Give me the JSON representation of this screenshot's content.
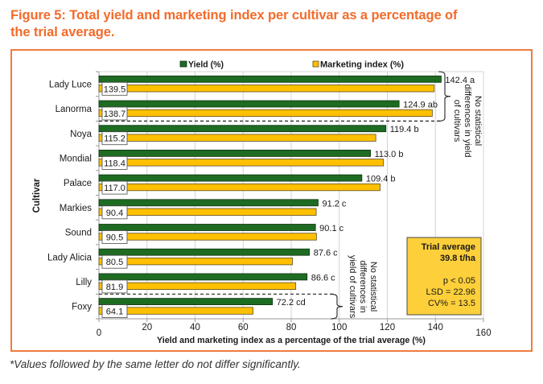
{
  "header": {
    "title_lines": [
      "Figure 5: Total yield and marketing index per cultivar as a percentage of",
      "the trial average."
    ]
  },
  "colors": {
    "title": "#f26b2b",
    "frame_border": "#f07b3f",
    "yield_bar": "#1e6b22",
    "marketing_bar": "#ffc000",
    "stats_box_fill": "#fdcf3a"
  },
  "stats_box": {
    "heading": "Trial average",
    "average": "39.8 t/ha",
    "p_value": "p < 0.05",
    "lsd": "LSD = 22.96",
    "cv": "CV% = 13.5"
  },
  "footnote": "*Values followed by the same letter do not differ significantly.",
  "chart_data": {
    "type": "bar",
    "orientation": "horizontal",
    "title": "Figure 5: Total yield and marketing index per cultivar as a percentage of the trial average.",
    "xlabel": "Yield and marketing index as a percentage of the trial average (%)",
    "ylabel": "Cultivar",
    "xlim": [
      0,
      160
    ],
    "xticks": [
      "0",
      "20",
      "40",
      "60",
      "80",
      "100",
      "120",
      "140",
      "160"
    ],
    "grid": true,
    "legend_position": "top",
    "categories": [
      "Lady Luce",
      "Lanorma",
      "Noya",
      "Mondial",
      "Palace",
      "Markies",
      "Sound",
      "Lady Alicia",
      "Lilly",
      "Foxy"
    ],
    "series": [
      {
        "name": "Yield (%)",
        "color": "#1e6b22",
        "values": [
          142.4,
          124.9,
          119.4,
          113.0,
          109.4,
          91.2,
          90.1,
          87.6,
          86.6,
          72.2
        ],
        "labels": [
          "142.4 a",
          "124.9 ab",
          "119.4 b",
          "113.0 b",
          "109.4 b",
          "91.2 c",
          "90.1 c",
          "87.6 c",
          "86.6 c",
          "72.2 cd"
        ]
      },
      {
        "name": "Marketing index (%)",
        "color": "#ffc000",
        "values": [
          139.5,
          138.7,
          115.2,
          118.4,
          117.0,
          90.4,
          90.5,
          80.5,
          81.9,
          64.1
        ],
        "labels": [
          "139.5",
          "138.7",
          "115.2",
          "118.4",
          "117.0",
          "90.4",
          "90.5",
          "80.5",
          "81.9",
          "64.1"
        ]
      }
    ],
    "annotations": [
      {
        "type": "bracket",
        "categories": [
          "Lady Luce",
          "Lanorma"
        ],
        "text_lines": [
          "No statistical",
          "differences in yield",
          "of cultivars"
        ]
      },
      {
        "type": "bracket",
        "categories": [
          "Foxy"
        ],
        "text_lines": [
          "No statistical",
          "differences in",
          "yield of cultivars"
        ]
      }
    ],
    "stats_note": [
      "Trial average",
      "39.8 t/ha",
      "p < 0.05",
      "LSD = 22.96",
      "CV% = 13.5"
    ]
  }
}
